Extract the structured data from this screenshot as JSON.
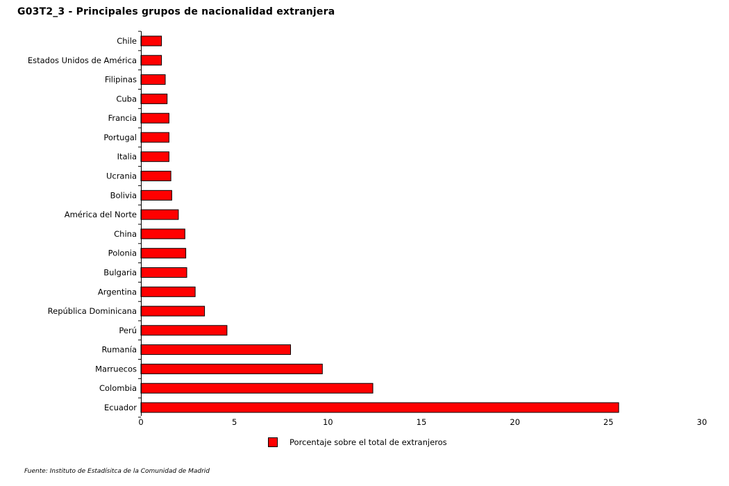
{
  "chart_data": {
    "type": "bar",
    "orientation": "horizontal",
    "title": "G03T2_3 - Principales grupos de nacionalidad extranjera",
    "categories": [
      "Chile",
      "Estados Unidos de América",
      "Filipinas",
      "Cuba",
      "Francia",
      "Portugal",
      "Italia",
      "Ucrania",
      "Bolivia",
      "América del Norte",
      "China",
      "Polonia",
      "Bulgaria",
      "Argentina",
      "República Dominicana",
      "Perú",
      "Rumanía",
      "Marruecos",
      "Colombia",
      "Ecuador"
    ],
    "series": [
      {
        "name": "Porcentaje sobre el total de extranjeros",
        "color": "#ff0000",
        "values": [
          1.1,
          1.1,
          1.3,
          1.4,
          1.5,
          1.5,
          1.5,
          1.6,
          1.65,
          2.0,
          2.35,
          2.4,
          2.45,
          2.9,
          3.4,
          4.6,
          8.0,
          9.7,
          12.4,
          25.55
        ]
      }
    ],
    "xlim": [
      0,
      30
    ],
    "xticks": [
      0,
      5,
      10,
      15,
      20,
      25,
      30
    ],
    "grid": false,
    "legend_position": "bottom",
    "source": "Fuente: Instituto de Estadísitca de la Comunidad de Madrid"
  }
}
